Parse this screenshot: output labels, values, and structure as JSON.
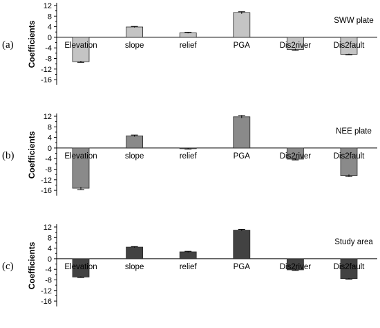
{
  "chart_data": [
    {
      "type": "bar",
      "panel_label": "(a)",
      "title": "SWW plate",
      "ylabel": "Coefficients",
      "categories": [
        "Elevation",
        "slope",
        "relief",
        "PGA",
        "Dis2river",
        "Dis2fault"
      ],
      "values": [
        -9.2,
        3.9,
        1.7,
        9.3,
        -4.6,
        -6.4
      ],
      "errors": [
        0.3,
        0.2,
        0.2,
        0.4,
        0.3,
        0.2
      ],
      "ylim": [
        -18,
        12
      ],
      "yticks": [
        12,
        8,
        4,
        0,
        -4,
        -8,
        -12,
        -16
      ],
      "bar_color": "#c4c4c4",
      "grid": false
    },
    {
      "type": "bar",
      "panel_label": "(b)",
      "title": "NEE plate",
      "ylabel": "Coefficients",
      "categories": [
        "Elevation",
        "slope",
        "relief",
        "PGA",
        "Dis2river",
        "Dis2fault"
      ],
      "values": [
        -15.2,
        4.6,
        -0.2,
        11.8,
        -4.2,
        -10.4
      ],
      "errors": [
        0.5,
        0.3,
        0.2,
        0.5,
        0.3,
        0.4
      ],
      "ylim": [
        -18,
        12
      ],
      "yticks": [
        12,
        8,
        4,
        0,
        -4,
        -8,
        -12,
        -16
      ],
      "bar_color": "#8a8a8a",
      "grid": false
    },
    {
      "type": "bar",
      "panel_label": "(c)",
      "title": "Study area",
      "ylabel": "Coefficients",
      "categories": [
        "Elevation",
        "slope",
        "relief",
        "PGA",
        "Dis2river",
        "Dis2fault"
      ],
      "values": [
        -6.9,
        4.4,
        2.6,
        10.8,
        -4.2,
        -7.5
      ],
      "errors": [
        0.2,
        0.2,
        0.2,
        0.3,
        0.2,
        0.2
      ],
      "ylim": [
        -18,
        12
      ],
      "yticks": [
        12,
        8,
        4,
        0,
        -4,
        -8,
        -12,
        -16
      ],
      "bar_color": "#424242",
      "grid": false
    }
  ]
}
